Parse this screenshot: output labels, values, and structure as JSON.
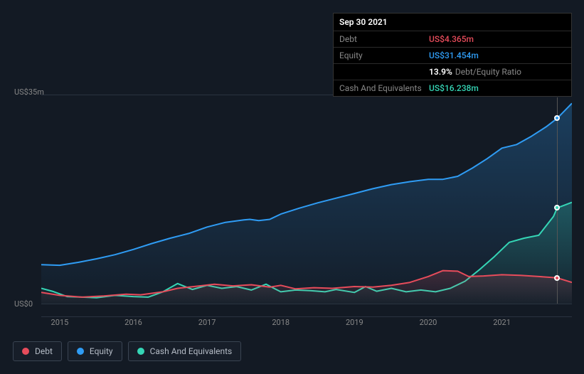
{
  "background_color": "#131a24",
  "tooltip": {
    "date": "Sep 30 2021",
    "rows": [
      {
        "label": "Debt",
        "value": "US$4.365m",
        "color": "#e74c5b"
      },
      {
        "label": "Equity",
        "value": "US$31.454m",
        "color": "#2f9cf4"
      },
      {
        "label": "",
        "ratio_value": "13.9%",
        "ratio_label": "Debt/Equity Ratio"
      },
      {
        "label": "Cash And Equivalents",
        "value": "US$16.238m",
        "color": "#35d6b6"
      }
    ]
  },
  "chart": {
    "type": "area-line",
    "y_axis": {
      "max_label": "US$35m",
      "zero_label": "US$0",
      "ymin": 0,
      "ymax": 35,
      "grid_color": "#2a3340",
      "label_fontsize": 11,
      "label_color": "#888"
    },
    "x_axis": {
      "labels": [
        "2015",
        "2016",
        "2017",
        "2018",
        "2019",
        "2020",
        "2021"
      ],
      "x_domain_start": 2014.75,
      "x_domain_end": 2021.95,
      "label_fontsize": 11,
      "label_color": "#888"
    },
    "cursor_x": 2021.75,
    "series": [
      {
        "name": "Equity",
        "color": "#2f9cf4",
        "fill_opacity_top": 0.28,
        "fill_opacity_bottom": 0.02,
        "line_width": 2,
        "points": [
          [
            2014.75,
            6.6
          ],
          [
            2015.0,
            6.5
          ],
          [
            2015.25,
            7.0
          ],
          [
            2015.5,
            7.6
          ],
          [
            2015.75,
            8.3
          ],
          [
            2016.0,
            9.2
          ],
          [
            2016.25,
            10.2
          ],
          [
            2016.5,
            11.1
          ],
          [
            2016.75,
            11.9
          ],
          [
            2017.0,
            13.0
          ],
          [
            2017.25,
            13.8
          ],
          [
            2017.5,
            14.2
          ],
          [
            2017.58,
            14.3
          ],
          [
            2017.7,
            14.1
          ],
          [
            2017.85,
            14.3
          ],
          [
            2018.0,
            15.2
          ],
          [
            2018.25,
            16.2
          ],
          [
            2018.5,
            17.1
          ],
          [
            2018.75,
            17.9
          ],
          [
            2019.0,
            18.7
          ],
          [
            2019.25,
            19.5
          ],
          [
            2019.5,
            20.2
          ],
          [
            2019.75,
            20.7
          ],
          [
            2020.0,
            21.1
          ],
          [
            2020.2,
            21.1
          ],
          [
            2020.4,
            21.6
          ],
          [
            2020.6,
            23.0
          ],
          [
            2020.8,
            24.6
          ],
          [
            2021.0,
            26.4
          ],
          [
            2021.2,
            27.0
          ],
          [
            2021.4,
            28.4
          ],
          [
            2021.6,
            30.0
          ],
          [
            2021.75,
            31.45
          ],
          [
            2021.95,
            34.0
          ]
        ]
      },
      {
        "name": "Cash And Equivalents",
        "color": "#35d6b6",
        "fill_opacity_top": 0.25,
        "fill_opacity_bottom": 0.02,
        "line_width": 2,
        "points": [
          [
            2014.75,
            2.6
          ],
          [
            2014.9,
            2.1
          ],
          [
            2015.1,
            1.2
          ],
          [
            2015.3,
            1.1
          ],
          [
            2015.5,
            1.0
          ],
          [
            2015.75,
            1.4
          ],
          [
            2016.0,
            1.2
          ],
          [
            2016.2,
            1.1
          ],
          [
            2016.4,
            2.0
          ],
          [
            2016.6,
            3.4
          ],
          [
            2016.8,
            2.4
          ],
          [
            2017.0,
            3.1
          ],
          [
            2017.2,
            2.6
          ],
          [
            2017.4,
            2.9
          ],
          [
            2017.6,
            2.3
          ],
          [
            2017.8,
            3.3
          ],
          [
            2018.0,
            2.0
          ],
          [
            2018.2,
            2.3
          ],
          [
            2018.4,
            2.2
          ],
          [
            2018.6,
            2.0
          ],
          [
            2018.75,
            2.4
          ],
          [
            2019.0,
            1.9
          ],
          [
            2019.15,
            2.9
          ],
          [
            2019.3,
            2.1
          ],
          [
            2019.5,
            2.6
          ],
          [
            2019.7,
            2.0
          ],
          [
            2019.9,
            2.3
          ],
          [
            2020.1,
            2.0
          ],
          [
            2020.3,
            2.6
          ],
          [
            2020.5,
            3.8
          ],
          [
            2020.7,
            5.8
          ],
          [
            2020.9,
            8.0
          ],
          [
            2021.1,
            10.4
          ],
          [
            2021.3,
            11.1
          ],
          [
            2021.5,
            11.6
          ],
          [
            2021.7,
            14.8
          ],
          [
            2021.75,
            16.24
          ],
          [
            2021.95,
            17.2
          ]
        ]
      },
      {
        "name": "Debt",
        "color": "#e74c5b",
        "fill_opacity_top": 0.2,
        "fill_opacity_bottom": 0.02,
        "line_width": 2,
        "points": [
          [
            2014.75,
            1.9
          ],
          [
            2015.0,
            1.4
          ],
          [
            2015.3,
            1.1
          ],
          [
            2015.6,
            1.3
          ],
          [
            2015.9,
            1.6
          ],
          [
            2016.1,
            1.5
          ],
          [
            2016.4,
            2.0
          ],
          [
            2016.6,
            2.6
          ],
          [
            2016.9,
            3.0
          ],
          [
            2017.1,
            3.3
          ],
          [
            2017.35,
            3.0
          ],
          [
            2017.6,
            3.2
          ],
          [
            2017.85,
            2.8
          ],
          [
            2018.0,
            3.1
          ],
          [
            2018.2,
            2.5
          ],
          [
            2018.45,
            2.7
          ],
          [
            2018.7,
            2.6
          ],
          [
            2019.0,
            2.9
          ],
          [
            2019.25,
            2.8
          ],
          [
            2019.5,
            3.1
          ],
          [
            2019.75,
            3.6
          ],
          [
            2020.0,
            4.6
          ],
          [
            2020.2,
            5.6
          ],
          [
            2020.4,
            5.5
          ],
          [
            2020.55,
            4.6
          ],
          [
            2020.75,
            4.7
          ],
          [
            2021.0,
            4.9
          ],
          [
            2021.25,
            4.8
          ],
          [
            2021.5,
            4.6
          ],
          [
            2021.75,
            4.37
          ],
          [
            2021.95,
            3.6
          ]
        ]
      }
    ],
    "legend": [
      {
        "label": "Debt",
        "color": "#e74c5b"
      },
      {
        "label": "Equity",
        "color": "#2f9cf4"
      },
      {
        "label": "Cash And Equivalents",
        "color": "#35d6b6"
      }
    ]
  }
}
